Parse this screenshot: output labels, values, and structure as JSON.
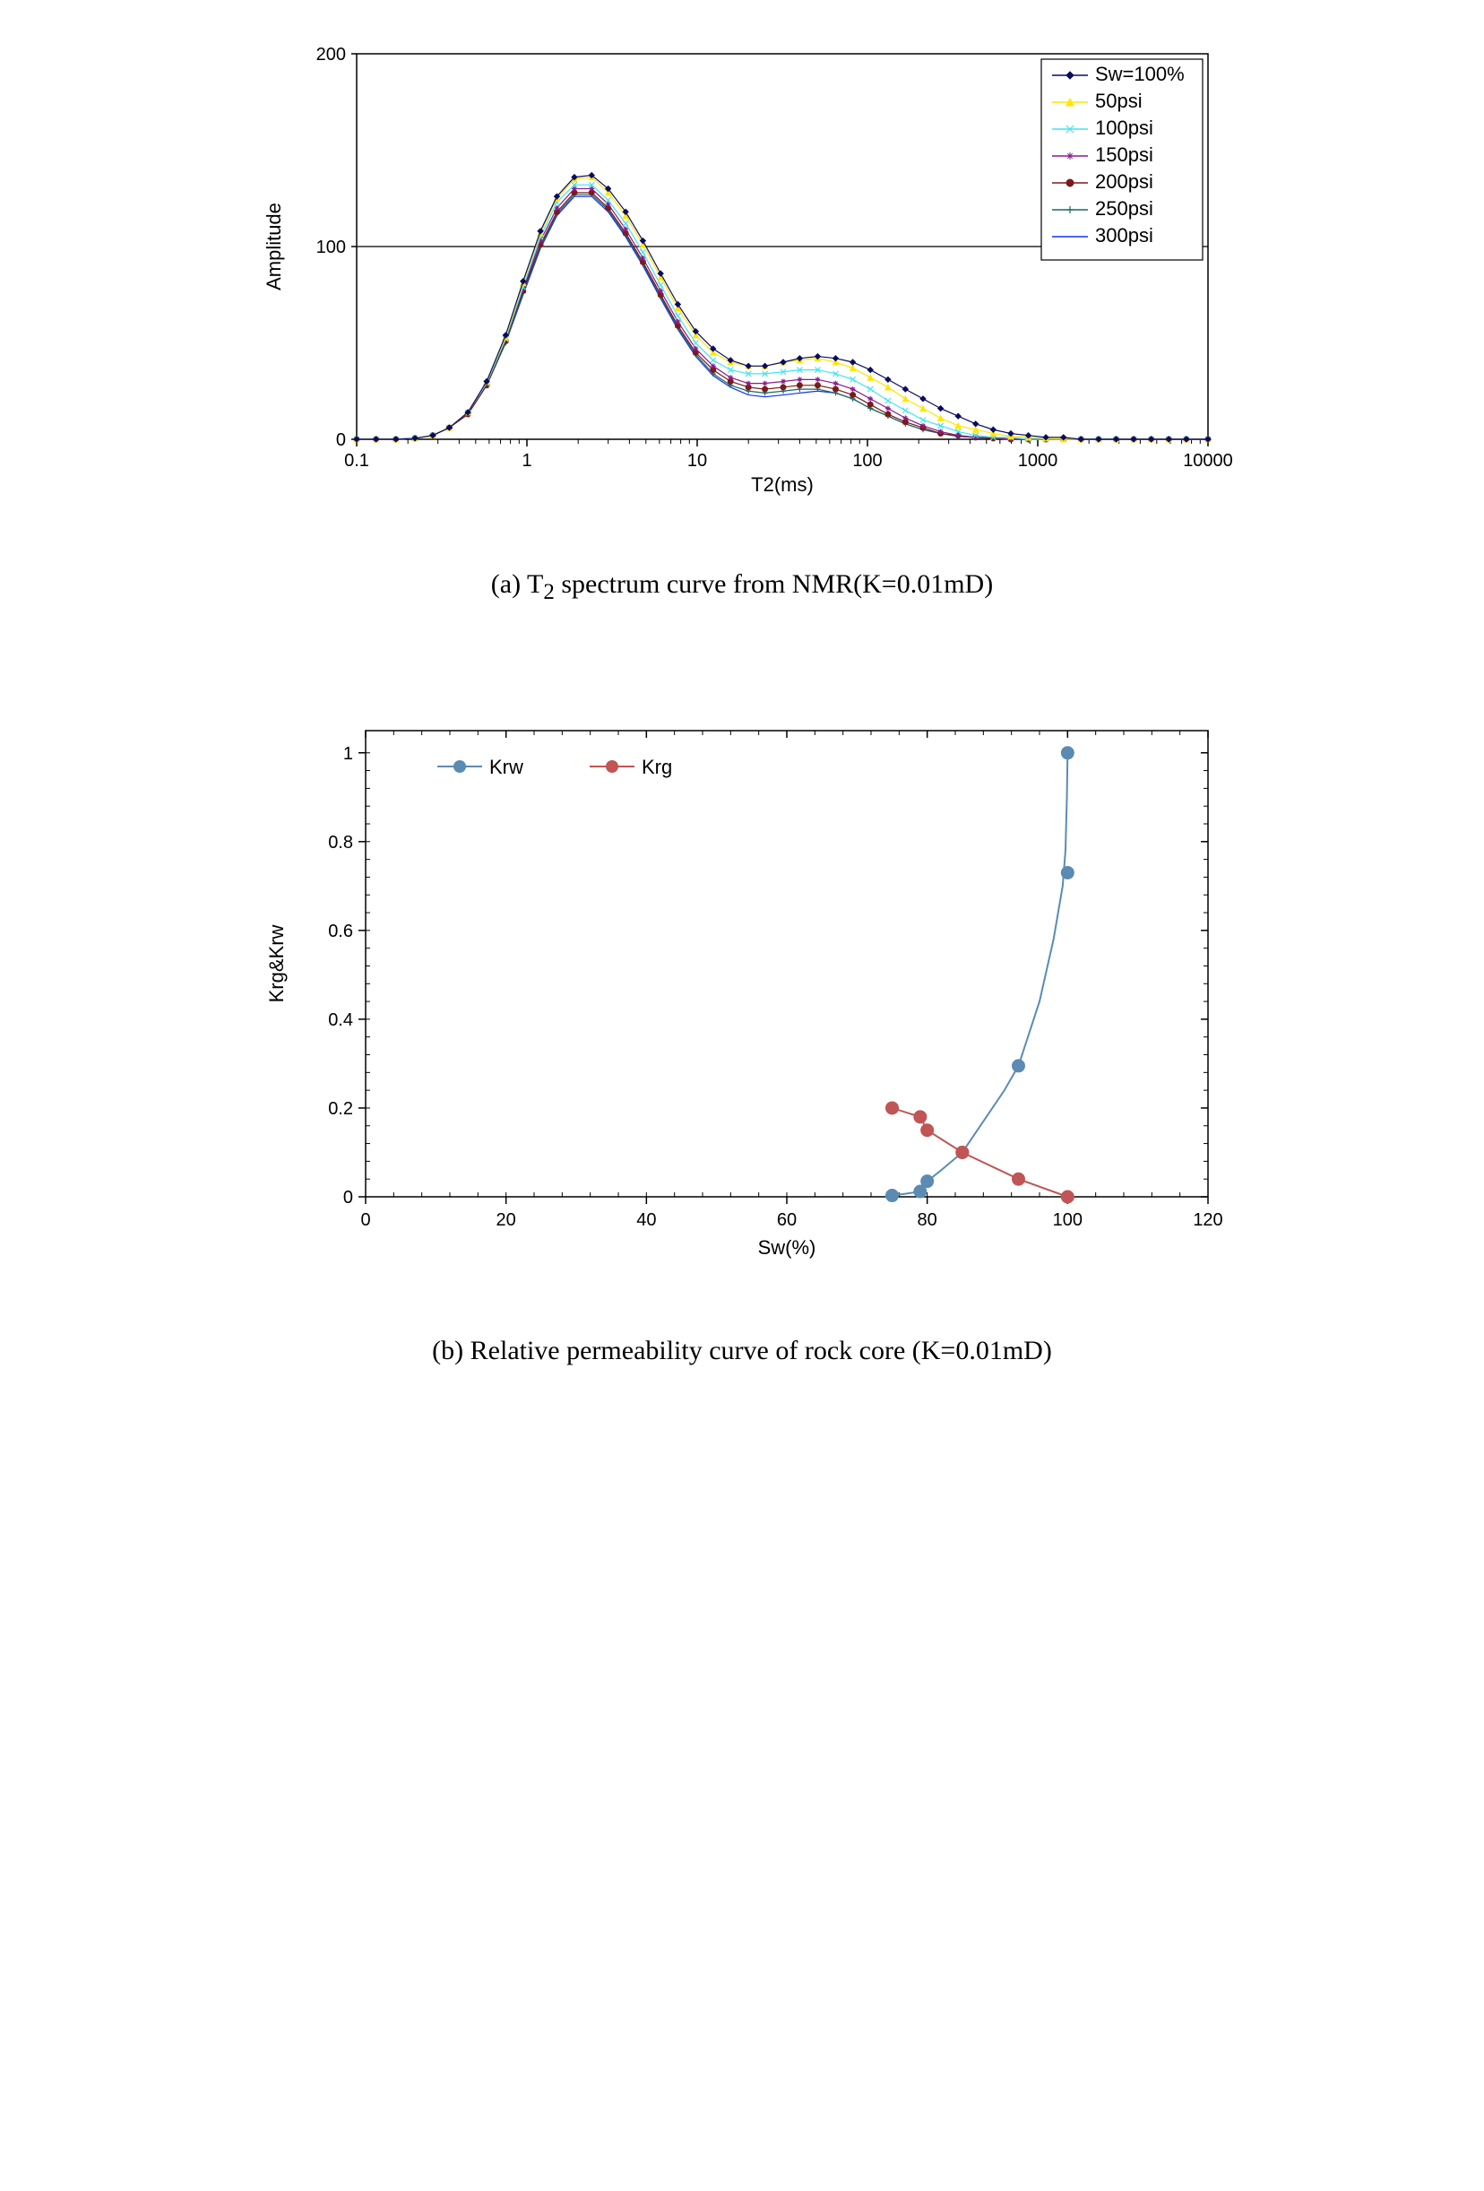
{
  "figure_a": {
    "caption_prefix": "(a) T",
    "caption_sub": "2",
    "caption_suffix": " spectrum curve from NMR(K=0.01mD)",
    "type": "line",
    "xlabel": "T2(ms)",
    "ylabel": "Amplitude",
    "xlog": true,
    "xlim": [
      0.1,
      10000
    ],
    "ylim": [
      0,
      200
    ],
    "x_ticks": [
      0.1,
      1,
      10,
      100,
      1000,
      10000
    ],
    "x_tick_labels": [
      "0.1",
      "1",
      "10",
      "100",
      "1000",
      "10000"
    ],
    "y_ticks": [
      0,
      100,
      200
    ],
    "y_tick_labels": [
      "0",
      "100",
      "200"
    ],
    "background_color": "#ffffff",
    "axis_color": "#000000",
    "axis_line_width": 1.5,
    "label_fontsize": 22,
    "tick_fontsize": 20,
    "line_width": 1.2,
    "marker_size": 3,
    "legend": {
      "position": "top-right",
      "border_color": "#000000",
      "border_width": 1.2,
      "background": "#ffffff",
      "fontsize": 22
    },
    "x_series": [
      0.1,
      0.13,
      0.17,
      0.22,
      0.28,
      0.35,
      0.45,
      0.58,
      0.75,
      0.95,
      1.2,
      1.5,
      1.9,
      2.4,
      3.0,
      3.8,
      4.8,
      6.1,
      7.7,
      9.8,
      12.4,
      15.7,
      20,
      25,
      32,
      40,
      51,
      65,
      82,
      104,
      132,
      167,
      212,
      269,
      341,
      432,
      548,
      695,
      881,
      1117,
      1417,
      1796,
      2277,
      2887,
      3661,
      4642,
      5886,
      7464,
      10000
    ],
    "series": [
      {
        "label": "Sw=100%",
        "color": "#0b0b60",
        "marker": "diamond",
        "y": [
          0,
          0,
          0,
          0.5,
          2,
          6,
          14,
          30,
          54,
          82,
          108,
          126,
          136,
          137,
          130,
          118,
          103,
          86,
          70,
          56,
          47,
          41,
          38,
          38,
          40,
          42,
          43,
          42,
          40,
          36,
          31,
          26,
          21,
          16,
          12,
          8,
          5,
          3,
          2,
          1,
          1,
          0,
          0,
          0,
          0,
          0,
          0,
          0,
          0
        ]
      },
      {
        "label": "50psi",
        "color": "#ffe600",
        "marker": "triangle",
        "y": [
          0,
          0,
          0,
          0.5,
          2,
          6,
          14,
          30,
          53,
          81,
          107,
          125,
          135,
          136,
          128,
          116,
          101,
          84,
          68,
          54,
          45,
          40,
          38,
          38,
          40,
          41,
          42,
          40,
          37,
          32,
          27,
          21,
          16,
          11,
          7,
          5,
          3,
          1.5,
          1,
          0.5,
          0,
          0,
          0,
          0,
          0,
          0,
          0,
          0,
          0
        ]
      },
      {
        "label": "100psi",
        "color": "#43e4f0",
        "marker": "x",
        "y": [
          0,
          0,
          0,
          0.5,
          2,
          6,
          14,
          29,
          52,
          79,
          105,
          123,
          132,
          132,
          124,
          112,
          97,
          80,
          64,
          50,
          41,
          36,
          34,
          34,
          35,
          36,
          36,
          34,
          31,
          26,
          20,
          15,
          10,
          7,
          4,
          2,
          1,
          1,
          0,
          0,
          0,
          0,
          0,
          0,
          0,
          0,
          0,
          0,
          0
        ]
      },
      {
        "label": "150psi",
        "color": "#8a1a8a",
        "marker": "star",
        "y": [
          0,
          0,
          0,
          0.5,
          2,
          6,
          14,
          29,
          52,
          78,
          103,
          120,
          130,
          130,
          122,
          109,
          94,
          77,
          61,
          47,
          38,
          32,
          29,
          29,
          30,
          31,
          31,
          29,
          26,
          21,
          16,
          11,
          7,
          4,
          2,
          1,
          1,
          0,
          0,
          0,
          0,
          0,
          0,
          0,
          0,
          0,
          0,
          0,
          0
        ]
      },
      {
        "label": "200psi",
        "color": "#7a1a1a",
        "marker": "circle",
        "y": [
          0,
          0,
          0,
          0.5,
          2,
          6,
          13,
          28,
          51,
          77,
          101,
          118,
          128,
          128,
          120,
          107,
          92,
          75,
          59,
          45,
          36,
          30,
          27,
          26,
          27,
          28,
          28,
          26,
          23,
          18,
          13,
          9,
          6,
          3,
          2,
          1,
          0.5,
          0,
          0,
          0,
          0,
          0,
          0,
          0,
          0,
          0,
          0,
          0,
          0
        ]
      },
      {
        "label": "250psi",
        "color": "#1a6a5a",
        "marker": "plus",
        "y": [
          0,
          0,
          0,
          0.5,
          2,
          6,
          13,
          28,
          50,
          76,
          100,
          117,
          127,
          127,
          119,
          106,
          91,
          74,
          58,
          44,
          34,
          28,
          25,
          24,
          25,
          26,
          26,
          24,
          21,
          16,
          12,
          8,
          5,
          3,
          1.5,
          1,
          0.5,
          0,
          0,
          0,
          0,
          0,
          0,
          0,
          0,
          0,
          0,
          0,
          0
        ]
      },
      {
        "label": "300psi",
        "color": "#1030ff",
        "marker": "none",
        "y": [
          0,
          0,
          0,
          0.5,
          2,
          6,
          13,
          28,
          50,
          75,
          99,
          116,
          126,
          126,
          118,
          105,
          90,
          73,
          57,
          43,
          33,
          27,
          23,
          22,
          23,
          24,
          25,
          24,
          21,
          16,
          12,
          8,
          5,
          3,
          1.5,
          1,
          0.5,
          0,
          0,
          0,
          0,
          0,
          0,
          0,
          0,
          0,
          0,
          0,
          0
        ]
      }
    ]
  },
  "figure_b": {
    "caption": "(b) Relative permeability curve of rock core (K=0.01mD)",
    "type": "scatter-line",
    "xlabel": "Sw(%)",
    "ylabel": "Krg&Krw",
    "xlim": [
      0,
      120
    ],
    "ylim": [
      0,
      1.05
    ],
    "x_ticks": [
      0,
      20,
      40,
      60,
      80,
      100,
      120
    ],
    "x_tick_labels": [
      "0",
      "20",
      "40",
      "60",
      "80",
      "100",
      "120"
    ],
    "y_ticks": [
      0,
      0.2,
      0.4,
      0.6,
      0.8,
      1
    ],
    "y_tick_labels": [
      "0",
      "0.2",
      "0.4",
      "0.6",
      "0.8",
      "1"
    ],
    "background_color": "#ffffff",
    "axis_color": "#000000",
    "axis_line_width": 1.5,
    "label_fontsize": 22,
    "tick_fontsize": 20,
    "minor_x_step": 4,
    "minor_y_step": 0.04,
    "line_width": 2,
    "marker_size": 7,
    "legend": {
      "position": "top-left-inset",
      "fontsize": 22
    },
    "series": [
      {
        "label": "Krw",
        "color": "#5b8bb2",
        "marker": "circle",
        "points": [
          [
            75,
            0.003
          ],
          [
            79,
            0.012
          ],
          [
            80,
            0.035
          ],
          [
            85,
            0.1
          ],
          [
            93,
            0.295
          ],
          [
            100,
            0.73
          ],
          [
            100,
            1.0
          ]
        ],
        "curve": [
          [
            75,
            0.003
          ],
          [
            77,
            0.007
          ],
          [
            79,
            0.012
          ],
          [
            80,
            0.035
          ],
          [
            82,
            0.06
          ],
          [
            85,
            0.1
          ],
          [
            88,
            0.17
          ],
          [
            91,
            0.24
          ],
          [
            93,
            0.295
          ],
          [
            96,
            0.44
          ],
          [
            98,
            0.58
          ],
          [
            99.3,
            0.7
          ],
          [
            99.7,
            0.78
          ],
          [
            99.9,
            0.9
          ],
          [
            100,
            1.0
          ]
        ]
      },
      {
        "label": "Krg",
        "color": "#c15454",
        "marker": "circle",
        "points": [
          [
            75,
            0.2
          ],
          [
            79,
            0.18
          ],
          [
            80,
            0.15
          ],
          [
            85,
            0.1
          ],
          [
            93,
            0.04
          ],
          [
            100,
            0.0
          ]
        ],
        "curve": [
          [
            75,
            0.2
          ],
          [
            79,
            0.18
          ],
          [
            80,
            0.15
          ],
          [
            85,
            0.1
          ],
          [
            93,
            0.04
          ],
          [
            100,
            0.0
          ]
        ]
      }
    ]
  }
}
